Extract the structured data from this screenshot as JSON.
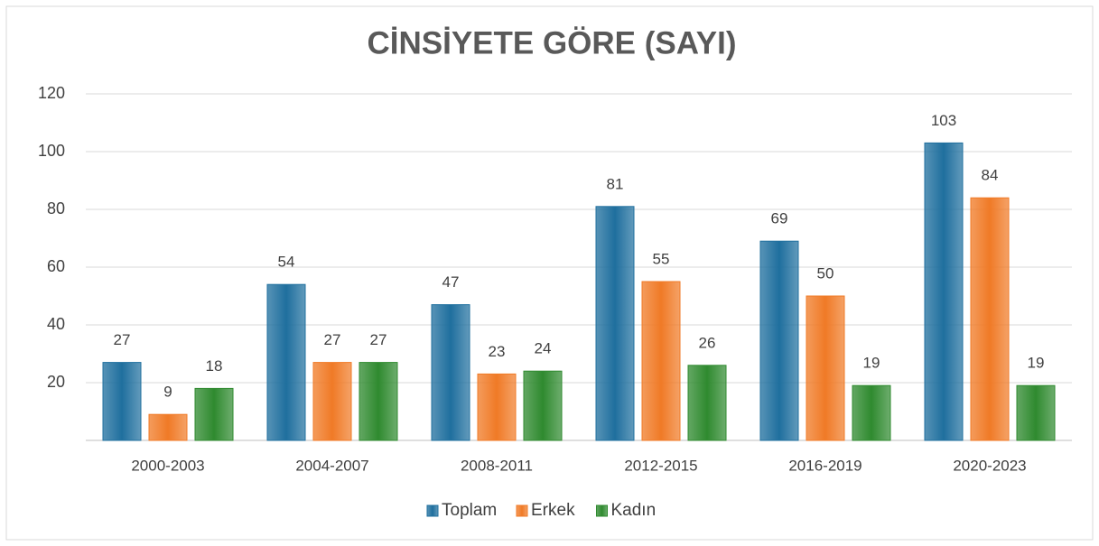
{
  "chart_data": {
    "type": "bar",
    "title": "CİNSİYETE GÖRE (SAYI)",
    "categories": [
      "2000-2003",
      "2004-2007",
      "2008-2011",
      "2012-2015",
      "2016-2019",
      "2020-2023"
    ],
    "series": [
      {
        "name": "Toplam",
        "color": "#1f6f9e",
        "values": [
          27,
          54,
          47,
          81,
          69,
          103
        ]
      },
      {
        "name": "Erkek",
        "color": "#f07a26",
        "values": [
          9,
          27,
          23,
          55,
          50,
          84
        ]
      },
      {
        "name": "Kadın",
        "color": "#2f8a2f",
        "values": [
          18,
          27,
          24,
          26,
          19,
          19
        ]
      }
    ],
    "ylim": [
      0,
      120
    ],
    "yticks": [
      20,
      40,
      60,
      80,
      100,
      120
    ],
    "grid": true,
    "legend": "bottom"
  }
}
